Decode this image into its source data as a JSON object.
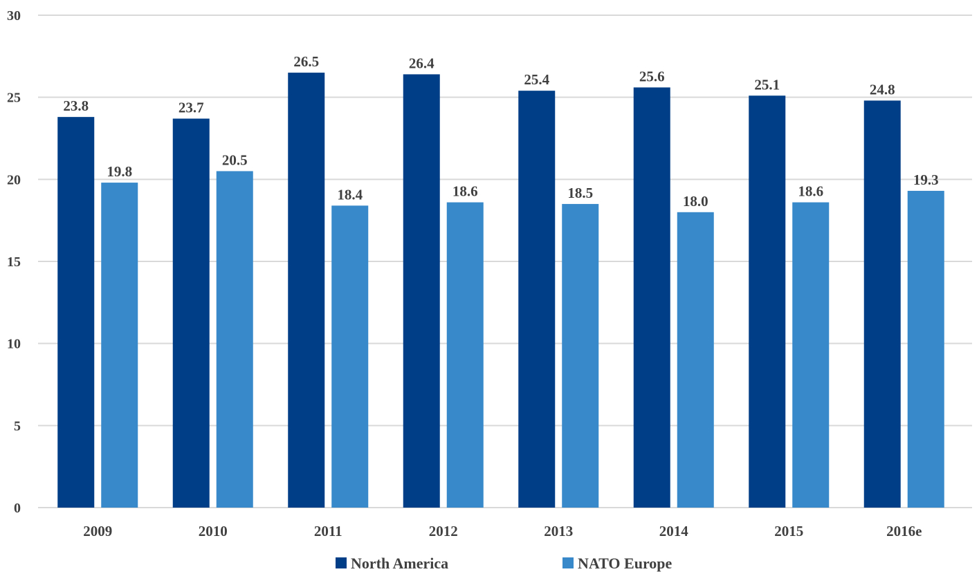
{
  "chart_data": {
    "type": "bar",
    "categories": [
      "2009",
      "2010",
      "2011",
      "2012",
      "2013",
      "2014",
      "2015",
      "2016e"
    ],
    "series": [
      {
        "name": "North America",
        "color": "#003f87",
        "values": [
          23.8,
          23.7,
          26.5,
          26.4,
          25.4,
          25.6,
          25.1,
          24.8
        ]
      },
      {
        "name": "NATO Europe",
        "color": "#3789ca",
        "values": [
          19.8,
          20.5,
          18.4,
          18.6,
          18.5,
          18.0,
          18.6,
          19.3
        ]
      }
    ],
    "y_ticks": [
      "0",
      "5",
      "10",
      "15",
      "20",
      "25",
      "30"
    ],
    "ylim": [
      0,
      30
    ],
    "grid": true,
    "data_labels": true,
    "legend_position": "bottom"
  }
}
